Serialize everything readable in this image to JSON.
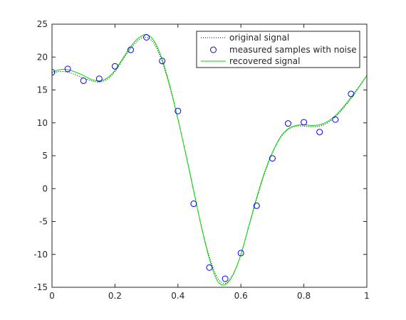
{
  "chart_data": {
    "type": "line",
    "title": "",
    "xlabel": "",
    "ylabel": "",
    "xlim": [
      0,
      1
    ],
    "ylim": [
      -15,
      25
    ],
    "xticks": [
      0,
      0.2,
      0.4,
      0.6,
      0.8,
      1
    ],
    "xtick_labels": [
      "0",
      "0.2",
      "0.4",
      "0.6",
      "0.8",
      "1"
    ],
    "yticks": [
      -15,
      -10,
      -5,
      0,
      5,
      10,
      15,
      20,
      25
    ],
    "ytick_labels": [
      "-15",
      "-10",
      "-5",
      "0",
      "5",
      "10",
      "15",
      "20",
      "25"
    ],
    "grid": false,
    "legend_position": "top-right",
    "series": [
      {
        "name": "original signal",
        "style": "dotted",
        "color": "#000000",
        "x": [
          0,
          0.025,
          0.05,
          0.075,
          0.1,
          0.125,
          0.15,
          0.175,
          0.2,
          0.225,
          0.25,
          0.275,
          0.3,
          0.325,
          0.35,
          0.375,
          0.4,
          0.425,
          0.45,
          0.475,
          0.5,
          0.525,
          0.55,
          0.575,
          0.6,
          0.625,
          0.65,
          0.675,
          0.7,
          0.725,
          0.75,
          0.775,
          0.8,
          0.825,
          0.85,
          0.875,
          0.9,
          0.925,
          0.95,
          0.975,
          1
        ],
        "y": [
          17.6,
          17.8,
          17.7,
          17.3,
          16.8,
          16.4,
          16.2,
          16.6,
          17.8,
          19.6,
          21.3,
          22.6,
          23.0,
          22.0,
          19.3,
          15.3,
          10.5,
          5.2,
          -0.4,
          -5.8,
          -10.4,
          -13.5,
          -14.4,
          -13.0,
          -10.0,
          -5.8,
          -1.6,
          2.3,
          5.4,
          7.7,
          9.0,
          9.5,
          9.5,
          9.4,
          9.5,
          10.0,
          10.9,
          12.2,
          13.7,
          15.4,
          17.2
        ]
      },
      {
        "name": "measured samples with noise",
        "style": "markers",
        "color": "#0000ff",
        "x": [
          0,
          0.05,
          0.1,
          0.15,
          0.2,
          0.25,
          0.3,
          0.35,
          0.4,
          0.45,
          0.5,
          0.55,
          0.6,
          0.65,
          0.7,
          0.75,
          0.8,
          0.85,
          0.9,
          0.95
        ],
        "y": [
          17.7,
          18.2,
          16.4,
          16.7,
          18.6,
          21.1,
          23.0,
          19.4,
          11.8,
          -2.3,
          -12.0,
          -13.7,
          -9.8,
          -2.6,
          4.6,
          9.9,
          10.1,
          8.6,
          10.5,
          14.4
        ]
      },
      {
        "name": "recovered signal",
        "style": "solid",
        "color": "#00dd00",
        "x": [
          0,
          0.025,
          0.05,
          0.075,
          0.1,
          0.125,
          0.15,
          0.175,
          0.2,
          0.225,
          0.25,
          0.275,
          0.3,
          0.325,
          0.35,
          0.375,
          0.4,
          0.425,
          0.45,
          0.475,
          0.5,
          0.525,
          0.55,
          0.575,
          0.6,
          0.625,
          0.65,
          0.675,
          0.7,
          0.725,
          0.75,
          0.775,
          0.8,
          0.825,
          0.85,
          0.875,
          0.9,
          0.925,
          0.95,
          0.975,
          1
        ],
        "y": [
          17.7,
          18.1,
          18.1,
          17.7,
          17.2,
          16.6,
          16.4,
          16.8,
          18.0,
          19.8,
          21.6,
          22.9,
          23.4,
          22.4,
          19.6,
          15.5,
          10.6,
          5.3,
          -0.3,
          -5.9,
          -10.7,
          -14.0,
          -14.6,
          -13.1,
          -10.0,
          -5.7,
          -1.4,
          2.5,
          5.5,
          7.8,
          9.1,
          9.6,
          9.7,
          9.6,
          9.7,
          10.2,
          11.1,
          12.4,
          13.9,
          15.5,
          17.2
        ]
      }
    ]
  }
}
